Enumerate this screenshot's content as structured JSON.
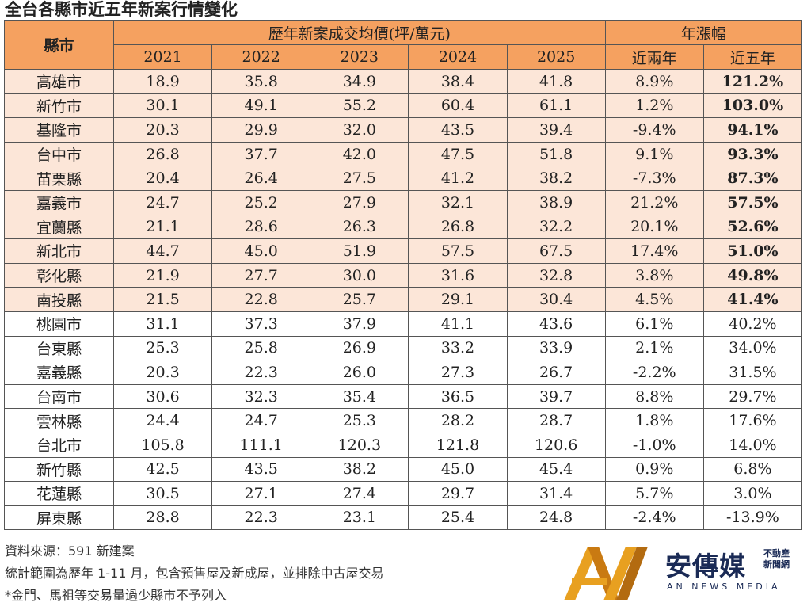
{
  "title": "全台各縣市近五年新案行情變化",
  "header": {
    "county": "縣市",
    "price_group": "歷年新案成交均價(坪/萬元)",
    "growth_group": "年漲幅",
    "years": [
      "2021",
      "2022",
      "2023",
      "2024",
      "2025"
    ],
    "growth": [
      "近兩年",
      "近五年"
    ]
  },
  "colors": {
    "header": "#F5A160",
    "highlight_row": "#FCE6D8",
    "logo_gold": "#E8A020",
    "logo_navy": "#1a2a55"
  },
  "highlighted_rows": 10,
  "rows": [
    [
      "高雄市",
      "18.9",
      "35.8",
      "34.9",
      "38.4",
      "41.8",
      "8.9%",
      "121.2%"
    ],
    [
      "新竹市",
      "30.1",
      "49.1",
      "55.2",
      "60.4",
      "61.1",
      "1.2%",
      "103.0%"
    ],
    [
      "基隆市",
      "20.3",
      "29.9",
      "32.0",
      "43.5",
      "39.4",
      "-9.4%",
      "94.1%"
    ],
    [
      "台中市",
      "26.8",
      "37.7",
      "42.0",
      "47.5",
      "51.8",
      "9.1%",
      "93.3%"
    ],
    [
      "苗栗縣",
      "20.4",
      "26.4",
      "27.5",
      "41.2",
      "38.2",
      "-7.3%",
      "87.3%"
    ],
    [
      "嘉義市",
      "24.7",
      "25.2",
      "27.9",
      "32.1",
      "38.9",
      "21.2%",
      "57.5%"
    ],
    [
      "宜蘭縣",
      "21.1",
      "28.6",
      "26.3",
      "26.8",
      "32.2",
      "20.1%",
      "52.6%"
    ],
    [
      "新北市",
      "44.7",
      "45.0",
      "51.9",
      "57.5",
      "67.5",
      "17.4%",
      "51.0%"
    ],
    [
      "彰化縣",
      "21.9",
      "27.7",
      "30.0",
      "31.6",
      "32.8",
      "3.8%",
      "49.8%"
    ],
    [
      "南投縣",
      "21.5",
      "22.8",
      "25.7",
      "29.1",
      "30.4",
      "4.5%",
      "41.4%"
    ],
    [
      "桃園市",
      "31.1",
      "37.3",
      "37.9",
      "41.1",
      "43.6",
      "6.1%",
      "40.2%"
    ],
    [
      "台東縣",
      "25.3",
      "25.8",
      "26.9",
      "33.2",
      "33.9",
      "2.1%",
      "34.0%"
    ],
    [
      "嘉義縣",
      "20.3",
      "22.3",
      "26.0",
      "27.3",
      "26.7",
      "-2.2%",
      "31.5%"
    ],
    [
      "台南市",
      "30.6",
      "32.3",
      "35.4",
      "36.5",
      "39.7",
      "8.8%",
      "29.7%"
    ],
    [
      "雲林縣",
      "24.4",
      "24.7",
      "25.3",
      "28.2",
      "28.7",
      "1.8%",
      "17.6%"
    ],
    [
      "台北市",
      "105.8",
      "111.1",
      "120.3",
      "121.8",
      "120.6",
      "-1.0%",
      "14.0%"
    ],
    [
      "新竹縣",
      "42.5",
      "43.5",
      "38.2",
      "45.0",
      "45.4",
      "0.9%",
      "6.8%"
    ],
    [
      "花蓮縣",
      "30.5",
      "27.1",
      "27.4",
      "29.7",
      "31.4",
      "5.7%",
      "3.0%"
    ],
    [
      "屏東縣",
      "28.8",
      "22.3",
      "23.1",
      "25.4",
      "24.8",
      "-2.4%",
      "-13.9%"
    ]
  ],
  "notes": [
    "資料來源：591 新建案",
    "統計範圍為歷年 1-11 月，包含預售屋及新成屋，並排除中古屋交易",
    "*金門、馬祖等交易量過少縣市不予列入"
  ],
  "logo": {
    "name": "安傳媒",
    "sub1": "不動產",
    "sub2": "新聞網",
    "en": "AN NEWS MEDIA"
  }
}
